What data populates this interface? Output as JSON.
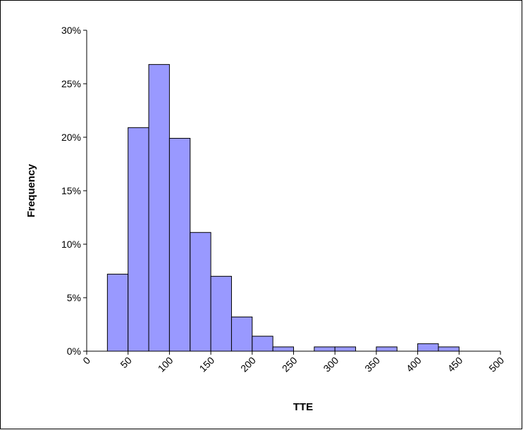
{
  "chart_data": {
    "type": "histogram",
    "x_label": "TTE",
    "y_label": "Frequency",
    "bins": [
      25,
      50,
      75,
      100,
      125,
      150,
      175,
      200,
      225,
      250,
      275,
      300,
      325,
      350,
      375,
      400,
      425,
      450,
      475,
      500
    ],
    "values": [
      7.2,
      20.9,
      26.8,
      19.9,
      11.1,
      7.0,
      3.2,
      1.4,
      0.4,
      0,
      0.4,
      0.4,
      0,
      0.4,
      0,
      0.7,
      0.4,
      0,
      0
    ],
    "color": "#9999ff",
    "xlim": [
      0,
      500
    ],
    "xticks": [
      0,
      50,
      100,
      150,
      200,
      250,
      300,
      350,
      400,
      450,
      500
    ],
    "ylim": [
      0,
      30
    ],
    "yticks": [
      {
        "value": 0,
        "label": "0%"
      },
      {
        "value": 5,
        "label": "5%"
      },
      {
        "value": 10,
        "label": "10%"
      },
      {
        "value": 15,
        "label": "15%"
      },
      {
        "value": 20,
        "label": "20%"
      },
      {
        "value": 25,
        "label": "25%"
      },
      {
        "value": 30,
        "label": "30%"
      }
    ],
    "grid": false
  }
}
